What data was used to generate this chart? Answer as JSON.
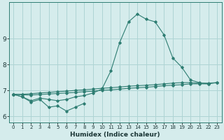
{
  "xlabel": "Humidex (Indice chaleur)",
  "x_values": [
    0,
    1,
    2,
    3,
    4,
    5,
    6,
    7,
    8,
    9,
    10,
    11,
    12,
    13,
    14,
    15,
    16,
    17,
    18,
    19,
    20,
    21,
    22,
    23
  ],
  "line1": [
    6.85,
    6.75,
    6.55,
    6.65,
    6.35,
    6.4,
    6.2,
    6.35,
    6.5,
    null,
    null,
    null,
    null,
    null,
    null,
    null,
    null,
    null,
    null,
    null,
    null,
    null,
    null,
    null
  ],
  "line2": [
    6.85,
    6.75,
    6.6,
    6.7,
    6.65,
    6.6,
    6.65,
    6.75,
    6.8,
    6.9,
    7.05,
    7.75,
    8.85,
    9.65,
    9.95,
    9.75,
    9.65,
    9.15,
    8.25,
    7.9,
    7.4,
    7.3,
    7.25,
    null
  ],
  "line3": [
    6.85,
    6.83,
    6.82,
    6.84,
    6.86,
    6.88,
    6.9,
    6.92,
    6.95,
    6.97,
    7.0,
    7.02,
    7.05,
    7.08,
    7.1,
    7.12,
    7.15,
    7.18,
    7.2,
    7.22,
    7.25,
    7.25,
    7.25,
    7.3
  ],
  "line4": [
    6.85,
    6.85,
    6.87,
    6.9,
    6.92,
    6.95,
    6.97,
    7.0,
    7.02,
    7.05,
    7.08,
    7.1,
    7.13,
    7.16,
    7.18,
    7.2,
    7.22,
    7.25,
    7.28,
    7.3,
    7.3,
    7.28,
    7.28,
    7.3
  ],
  "line_color": "#2e7d72",
  "bg_color": "#d5ecec",
  "grid_color": "#aed4d4",
  "ylim": [
    5.75,
    10.4
  ],
  "yticks": [
    6,
    7,
    8,
    9
  ],
  "ytick_labels": [
    "6",
    "7",
    "8",
    "9"
  ],
  "xlim": [
    -0.5,
    23.5
  ],
  "figwidth": 3.2,
  "figheight": 2.0,
  "dpi": 100
}
